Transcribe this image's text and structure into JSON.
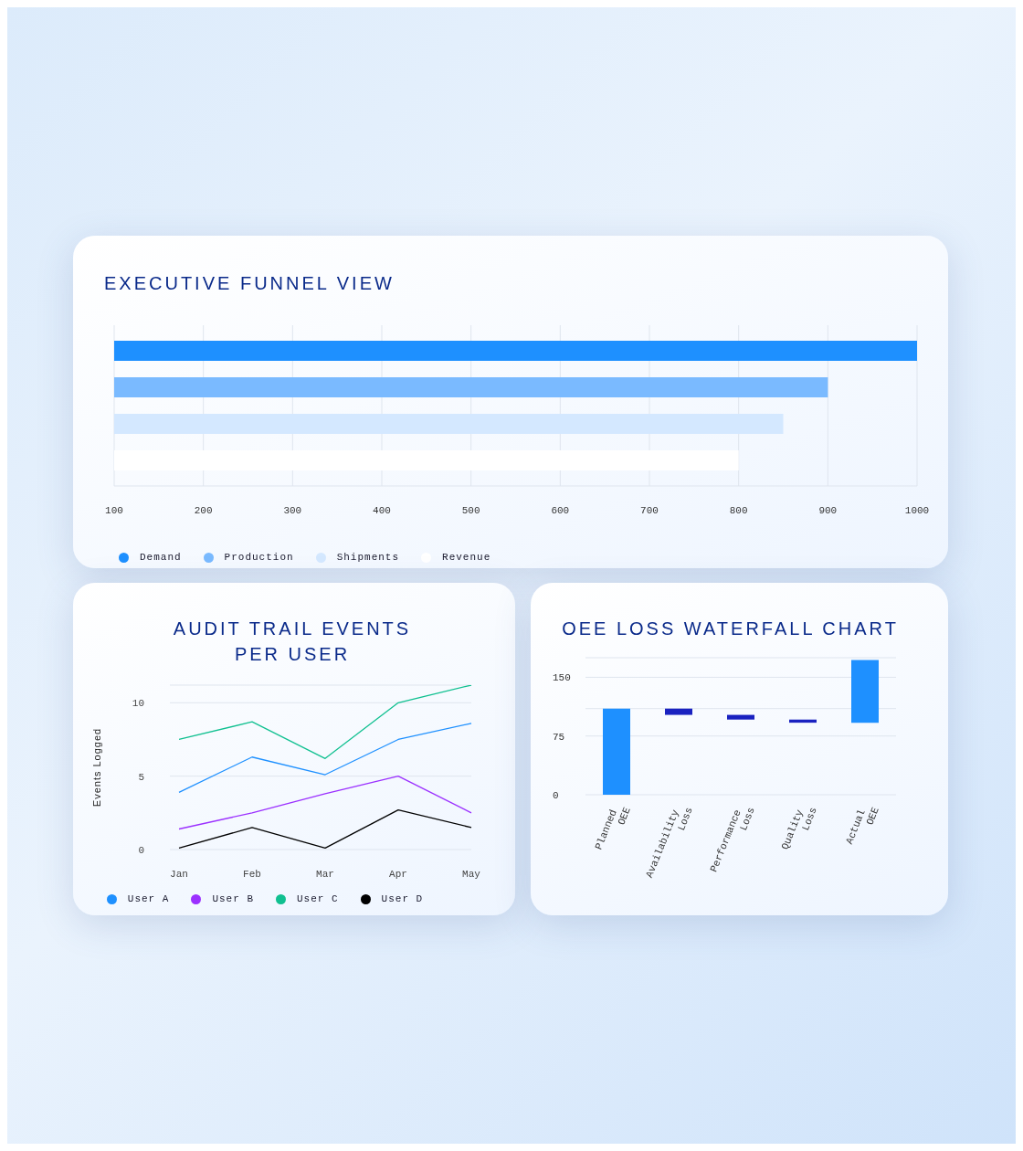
{
  "chart_data": [
    {
      "type": "bar",
      "title": "EXECUTIVE FUNNEL VIEW",
      "orientation": "horizontal",
      "categories": [
        null
      ],
      "series": [
        {
          "name": "Demand",
          "color": "#1e90ff",
          "values": [
            1000
          ]
        },
        {
          "name": "Production",
          "color": "#7abaff",
          "values": [
            900
          ]
        },
        {
          "name": "Shipments",
          "color": "#d4e8ff",
          "values": [
            850
          ]
        },
        {
          "name": "Revenue",
          "color": "#ffffff",
          "values": [
            800
          ]
        }
      ],
      "xlim": [
        100,
        1000
      ],
      "xticks": [
        100,
        200,
        300,
        400,
        500,
        600,
        700,
        800,
        900,
        1000
      ],
      "grid": "x",
      "legend": "bottom left"
    },
    {
      "type": "line",
      "title": "AUDIT TRAIL EVENTS PER USER",
      "ylabel": "Events Logged",
      "categories": [
        "Jan",
        "Feb",
        "Mar",
        "Apr",
        "May"
      ],
      "series": [
        {
          "name": "User A",
          "color": "#1e90ff",
          "values": [
            3.9,
            6.3,
            5.1,
            7.5,
            8.6
          ]
        },
        {
          "name": "User B",
          "color": "#9b30ff",
          "values": [
            1.4,
            2.5,
            3.8,
            5.0,
            2.5
          ]
        },
        {
          "name": "User C",
          "color": "#10c090",
          "values": [
            7.5,
            8.7,
            6.2,
            10.0,
            11.2
          ]
        },
        {
          "name": "User D",
          "color": "#000000",
          "values": [
            0.1,
            1.5,
            0.1,
            2.7,
            1.5
          ]
        }
      ],
      "ylim": [
        0,
        11.2
      ],
      "yticks": [
        0,
        5,
        10
      ],
      "grid": "y",
      "legend": "bottom",
      "marker": "none",
      "line_style": "solid"
    },
    {
      "type": "bar",
      "title": "OEE LOSS WATERFALL CHART",
      "categories": [
        "Planned OEE",
        "Availability Loss",
        "Performance Loss",
        "Quality Loss",
        "Actual OEE"
      ],
      "values": [
        110,
        -8,
        -6,
        -4,
        80
      ],
      "base": [
        0,
        110,
        102,
        96,
        92
      ],
      "colors": [
        "#1e90ff",
        "#1a22c0",
        "#1a22c0",
        "#1a22c0",
        "#1e90ff"
      ],
      "ylim": [
        0,
        175
      ],
      "yticks": [
        0,
        75,
        {
          "value": 110,
          "label": null
        },
        150
      ],
      "grid": "y"
    }
  ]
}
